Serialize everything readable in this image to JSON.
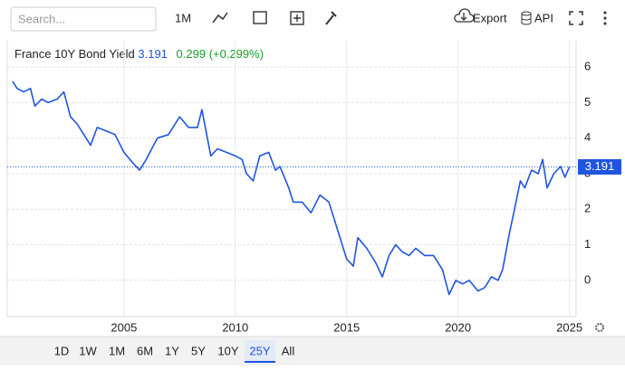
{
  "toolbar": {
    "search_placeholder": "Search...",
    "interval": "1M",
    "export": "Export",
    "api": "API"
  },
  "chart_data": {
    "type": "line",
    "title": "France 10Y Bond Yield",
    "last_value": 3.191,
    "change_text": "0.299 (+0.299%)",
    "x": [
      2000.0,
      2000.2,
      2000.5,
      2000.8,
      2001.0,
      2001.3,
      2001.6,
      2002.0,
      2002.3,
      2002.6,
      2002.9,
      2003.2,
      2003.5,
      2003.8,
      2004.2,
      2004.6,
      2005.0,
      2005.4,
      2005.7,
      2006.0,
      2006.5,
      2007.0,
      2007.5,
      2007.9,
      2008.3,
      2008.5,
      2008.9,
      2009.2,
      2009.6,
      2010.0,
      2010.3,
      2010.5,
      2010.8,
      2011.1,
      2011.5,
      2011.8,
      2012.0,
      2012.4,
      2012.6,
      2013.0,
      2013.4,
      2013.8,
      2014.2,
      2014.6,
      2015.0,
      2015.3,
      2015.5,
      2015.9,
      2016.3,
      2016.6,
      2016.9,
      2017.2,
      2017.5,
      2017.8,
      2018.1,
      2018.5,
      2018.9,
      2019.3,
      2019.6,
      2019.9,
      2020.2,
      2020.5,
      2020.9,
      2021.2,
      2021.5,
      2021.8,
      2022.0,
      2022.3,
      2022.5,
      2022.8,
      2023.0,
      2023.3,
      2023.6,
      2023.8,
      2024.0,
      2024.3,
      2024.6,
      2024.8,
      2025.0
    ],
    "series": [
      {
        "color": "#1f55e0",
        "values": [
          5.6,
          5.4,
          5.3,
          5.4,
          4.9,
          5.1,
          5.0,
          5.1,
          5.3,
          4.6,
          4.4,
          4.1,
          3.8,
          4.3,
          4.2,
          4.1,
          3.6,
          3.3,
          3.1,
          3.4,
          4.0,
          4.1,
          4.6,
          4.3,
          4.3,
          4.8,
          3.5,
          3.7,
          3.6,
          3.5,
          3.4,
          3.0,
          2.8,
          3.5,
          3.6,
          3.1,
          3.2,
          2.6,
          2.2,
          2.2,
          1.9,
          2.4,
          2.2,
          1.4,
          0.6,
          0.4,
          1.2,
          0.9,
          0.5,
          0.1,
          0.7,
          1.0,
          0.8,
          0.7,
          0.9,
          0.7,
          0.7,
          0.3,
          -0.4,
          0.0,
          -0.1,
          0.0,
          -0.3,
          -0.2,
          0.1,
          0.0,
          0.3,
          1.3,
          1.9,
          2.8,
          2.6,
          3.1,
          3.0,
          3.4,
          2.6,
          3.0,
          3.2,
          2.9,
          3.191
        ]
      }
    ],
    "xlim": [
      1999.76,
      2025.3
    ],
    "xticks": [
      2005,
      2010,
      2015,
      2020,
      2025
    ],
    "ylim": [
      -1.02,
      6.74
    ],
    "yticks": [
      0,
      1,
      2,
      3,
      4,
      5,
      6
    ],
    "grid": true
  },
  "ranges": [
    "1D",
    "1W",
    "1M",
    "6M",
    "1Y",
    "5Y",
    "10Y",
    "25Y",
    "All"
  ],
  "active_range_index": 7
}
